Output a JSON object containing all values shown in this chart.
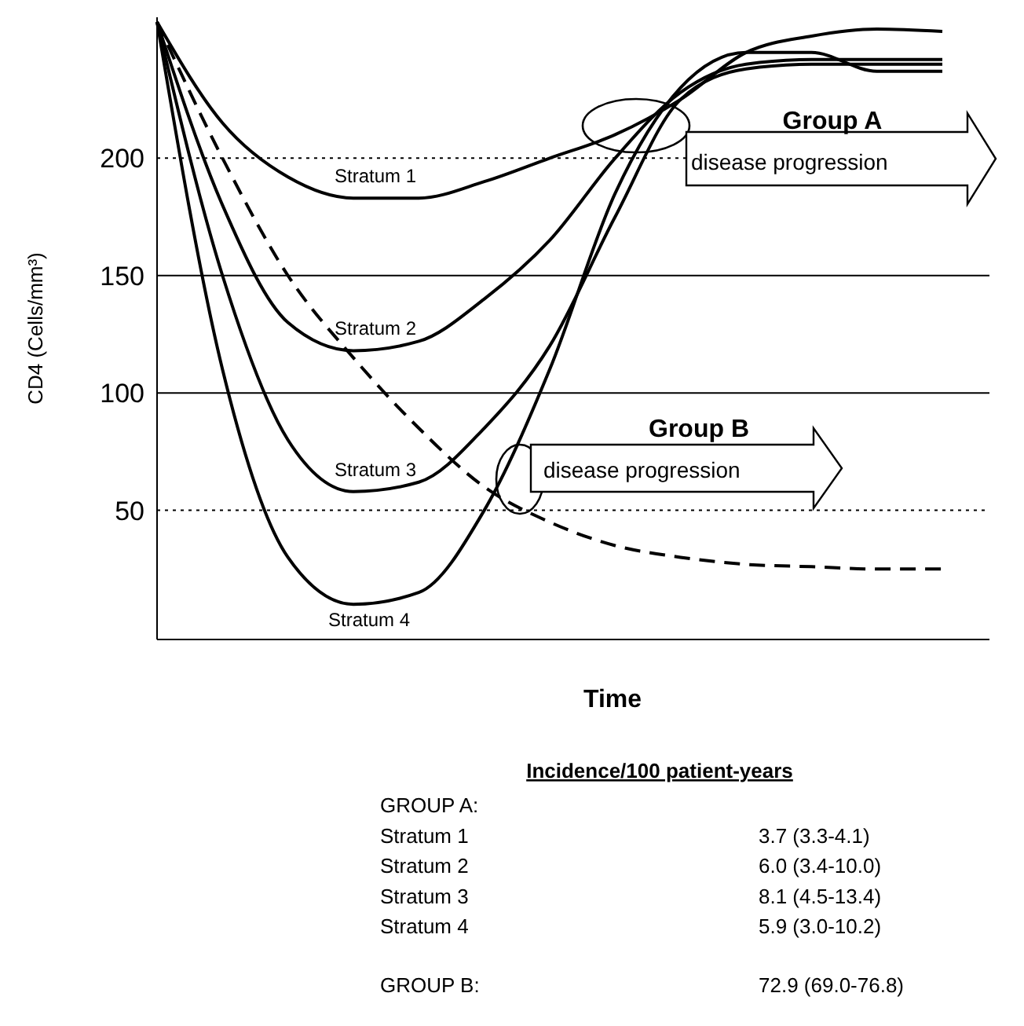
{
  "chart_data": {
    "type": "line",
    "xlabel": "Time",
    "ylabel": "CD4 (Cells/mm³)",
    "categories": [
      null,
      null,
      null,
      null,
      null,
      null,
      null,
      null,
      null,
      null,
      null,
      null,
      null
    ],
    "ylim": [
      -5,
      260
    ],
    "yticks": [
      50,
      100,
      150,
      200
    ],
    "tick_labels": "y",
    "marker": "none",
    "series": [
      {
        "name": "Stratum 1",
        "color": "#000000",
        "line_style": "solid",
        "values": [
          258,
          215,
          192,
          183,
          183,
          190,
          200,
          210,
          225,
          245,
          252,
          255,
          254
        ]
      },
      {
        "name": "Stratum 2",
        "color": "#000000",
        "line_style": "solid",
        "values": [
          258,
          180,
          130,
          118,
          122,
          140,
          165,
          200,
          228,
          240,
          242,
          242,
          242
        ]
      },
      {
        "name": "Stratum 3",
        "color": "#000000",
        "line_style": "solid",
        "values": [
          258,
          150,
          80,
          58,
          62,
          85,
          120,
          175,
          225,
          238,
          240,
          240,
          240
        ]
      },
      {
        "name": "Stratum 4",
        "color": "#000000",
        "line_style": "solid",
        "values": [
          258,
          110,
          30,
          10,
          15,
          50,
          110,
          185,
          230,
          245,
          245,
          237,
          237
        ]
      },
      {
        "color": "#000000",
        "line_style": "dashed",
        "values": [
          258,
          200,
          150,
          115,
          85,
          60,
          45,
          35,
          30,
          27,
          26,
          25,
          25
        ]
      }
    ],
    "ref_lines": [
      {
        "axis": "y",
        "value": 200,
        "line_style": "dotted",
        "color": "#000000"
      },
      {
        "axis": "y",
        "value": 150,
        "line_style": "solid",
        "color": "#000000"
      },
      {
        "axis": "y",
        "value": 100,
        "line_style": "solid",
        "color": "#000000"
      },
      {
        "axis": "y",
        "value": 50,
        "line_style": "dotted",
        "color": "#000000"
      }
    ],
    "annotations": [
      "Group A",
      "disease progression",
      "Group B",
      "disease progression",
      "Incidence/100 patient-years",
      "GROUP A:",
      "Stratum 1",
      "3.7 (3.3-4.1)",
      "Stratum 2",
      "6.0 (3.4-10.0)",
      "Stratum 3",
      "8.1 (4.5-13.4)",
      "Stratum 4",
      "5.9 (3.0-10.2)",
      "GROUP B:",
      "72.9 (69.0-76.8)"
    ]
  }
}
